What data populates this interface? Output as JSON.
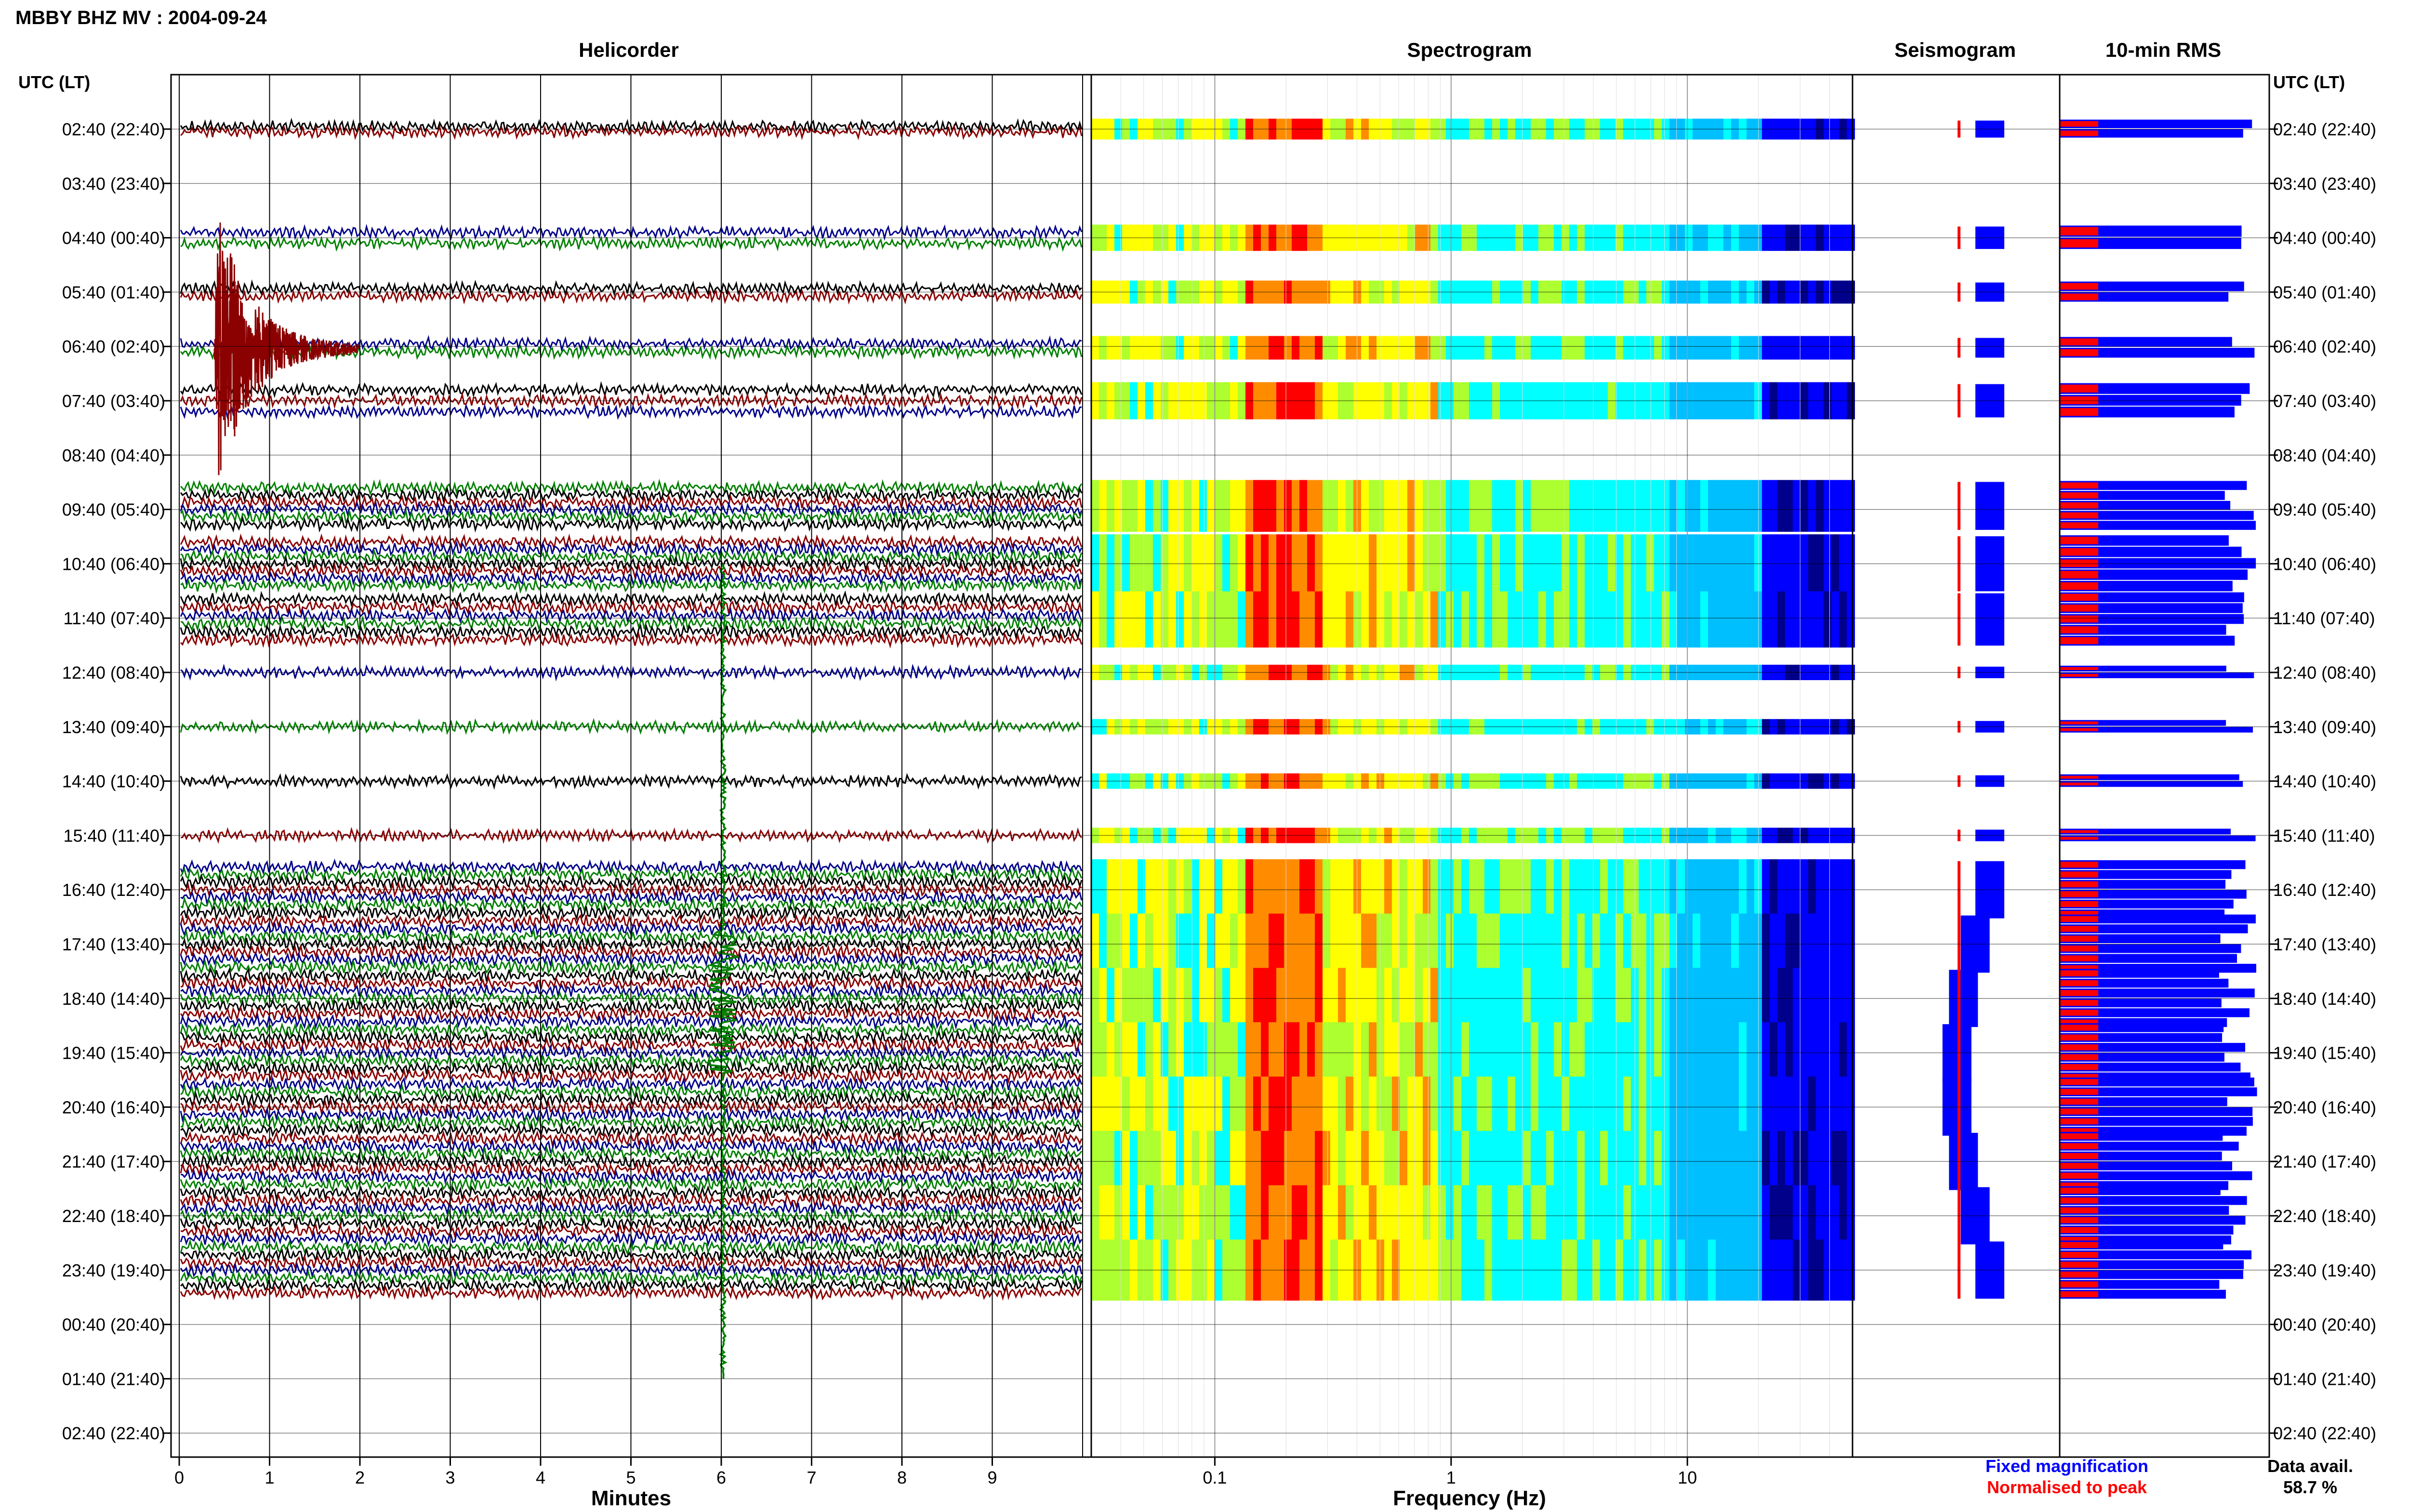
{
  "page": {
    "title": "MBBY BHZ MV : 2004-09-24"
  },
  "panels": {
    "helicorder": "Helicorder",
    "spectrogram": "Spectrogram",
    "seismogram": "Seismogram",
    "rms": "10-min RMS"
  },
  "axes": {
    "utc_label_left": "UTC (LT)",
    "utc_label_right": "UTC (LT)",
    "minutes_label": "Minutes",
    "frequency_label": "Frequency (Hz)"
  },
  "time_labels": [
    "02:40 (22:40)",
    "03:40 (23:40)",
    "04:40 (00:40)",
    "05:40 (01:40)",
    "06:40 (02:40)",
    "07:40 (03:40)",
    "08:40 (04:40)",
    "09:40 (05:40)",
    "10:40 (06:40)",
    "11:40 (07:40)",
    "12:40 (08:40)",
    "13:40 (09:40)",
    "14:40 (10:40)",
    "15:40 (11:40)",
    "16:40 (12:40)",
    "17:40 (13:40)",
    "18:40 (14:40)",
    "19:40 (15:40)",
    "20:40 (16:40)",
    "21:40 (17:40)",
    "22:40 (18:40)",
    "23:40 (19:40)",
    "00:40 (20:40)",
    "01:40 (21:40)",
    "02:40 (22:40)"
  ],
  "minute_ticks": [
    "0",
    "1",
    "2",
    "3",
    "4",
    "5",
    "6",
    "7",
    "8",
    "9"
  ],
  "freq_ticks": [
    "0.1",
    "1",
    "10"
  ],
  "legend": {
    "fixed": "Fixed magnification",
    "normalised": "Normalised to peak",
    "fixed_color": "#0000ff",
    "normalised_color": "#ff0000"
  },
  "data_avail": {
    "label": "Data avail.",
    "value": "58.7 %"
  },
  "chart_data": {
    "type": "helicorder",
    "station": "MBBY",
    "channel": "BHZ",
    "network": "MV",
    "date": "2004-09-24",
    "hour_rows": [
      "02:40",
      "03:40",
      "04:40",
      "05:40",
      "06:40",
      "07:40",
      "08:40",
      "09:40",
      "10:40",
      "11:40",
      "12:40",
      "13:40",
      "14:40",
      "15:40",
      "16:40",
      "17:40",
      "18:40",
      "19:40",
      "20:40",
      "21:40",
      "22:40",
      "23:40",
      "00:40",
      "01:40",
      "02:40"
    ],
    "xlim_minutes": [
      0,
      10
    ],
    "freq_range_hz": [
      0.03,
      50
    ],
    "trace_colors": [
      "#000000",
      "#8b0000",
      "#00008b",
      "#008000"
    ],
    "spectrogram_colors": [
      "#00008b",
      "#0000ff",
      "#00bfff",
      "#00ffff",
      "#adff2f",
      "#ffff00",
      "#ff8c00",
      "#ff0000"
    ],
    "data_availability_percent": 58.7
  }
}
